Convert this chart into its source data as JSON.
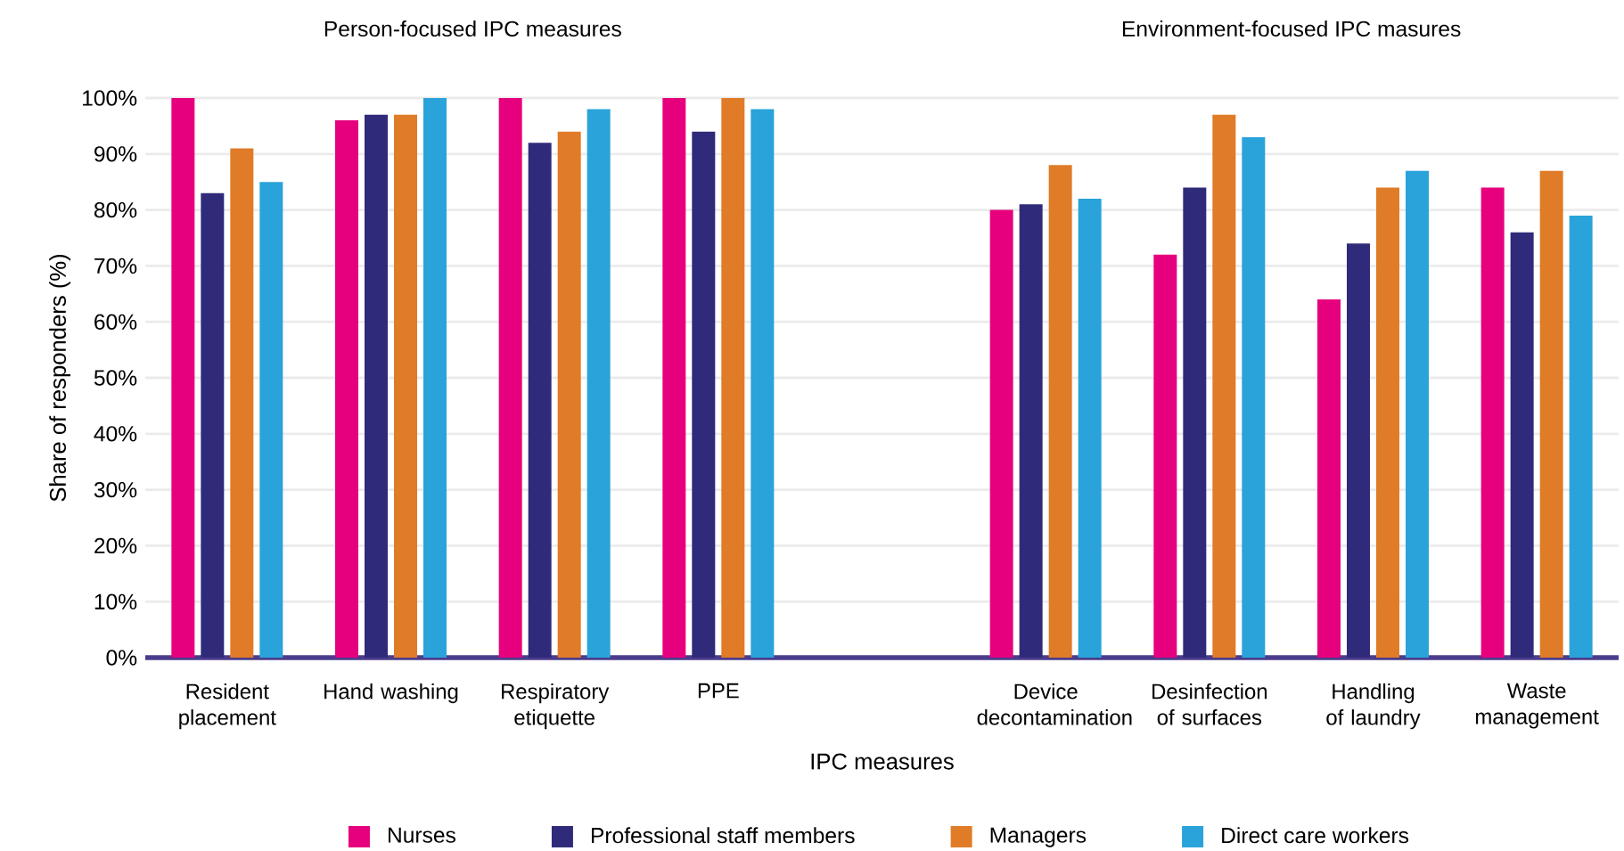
{
  "chart_data": {
    "type": "bar",
    "xlabel": "IPC measures",
    "ylabel": "Share of responders (%)",
    "annotations": [
      "Person-focused IPC measures",
      "Environment-focused IPC masures"
    ],
    "categories": [
      "Resident placement",
      "Hand washing",
      "Respiratory etiquette",
      "PPE",
      null,
      "Device decontamination",
      "Desinfection of surfaces",
      "Handling of laundry",
      "Waste management"
    ],
    "series": [
      {
        "name": "Nurses",
        "color": "#e6007e",
        "values": [
          100,
          96,
          100,
          100,
          null,
          80,
          72,
          64,
          84
        ]
      },
      {
        "name": "Professional staff members",
        "color": "#302a7a",
        "values": [
          83,
          97,
          92,
          94,
          null,
          81,
          84,
          74,
          76
        ]
      },
      {
        "name": "Managers",
        "color": "#e07b27",
        "values": [
          91,
          97,
          94,
          100,
          null,
          88,
          97,
          84,
          87
        ]
      },
      {
        "name": "Direct care workers",
        "color": "#29a3d9",
        "values": [
          85,
          100,
          98,
          98,
          null,
          82,
          93,
          87,
          79
        ]
      }
    ],
    "ylim": [
      0,
      100
    ],
    "yticks": [
      {
        "value": 0,
        "label": "0%"
      },
      {
        "value": 10,
        "label": "10%"
      },
      {
        "value": 20,
        "label": "20%"
      },
      {
        "value": 30,
        "label": "30%"
      },
      {
        "value": 40,
        "label": "40%"
      },
      {
        "value": 50,
        "label": "50%"
      },
      {
        "value": 60,
        "label": "60%"
      },
      {
        "value": 70,
        "label": "70%"
      },
      {
        "value": 80,
        "label": "80%"
      },
      {
        "value": 90,
        "label": "90%"
      },
      {
        "value": 100,
        "label": "100%"
      }
    ],
    "grid": "y",
    "legend": "bottom"
  }
}
